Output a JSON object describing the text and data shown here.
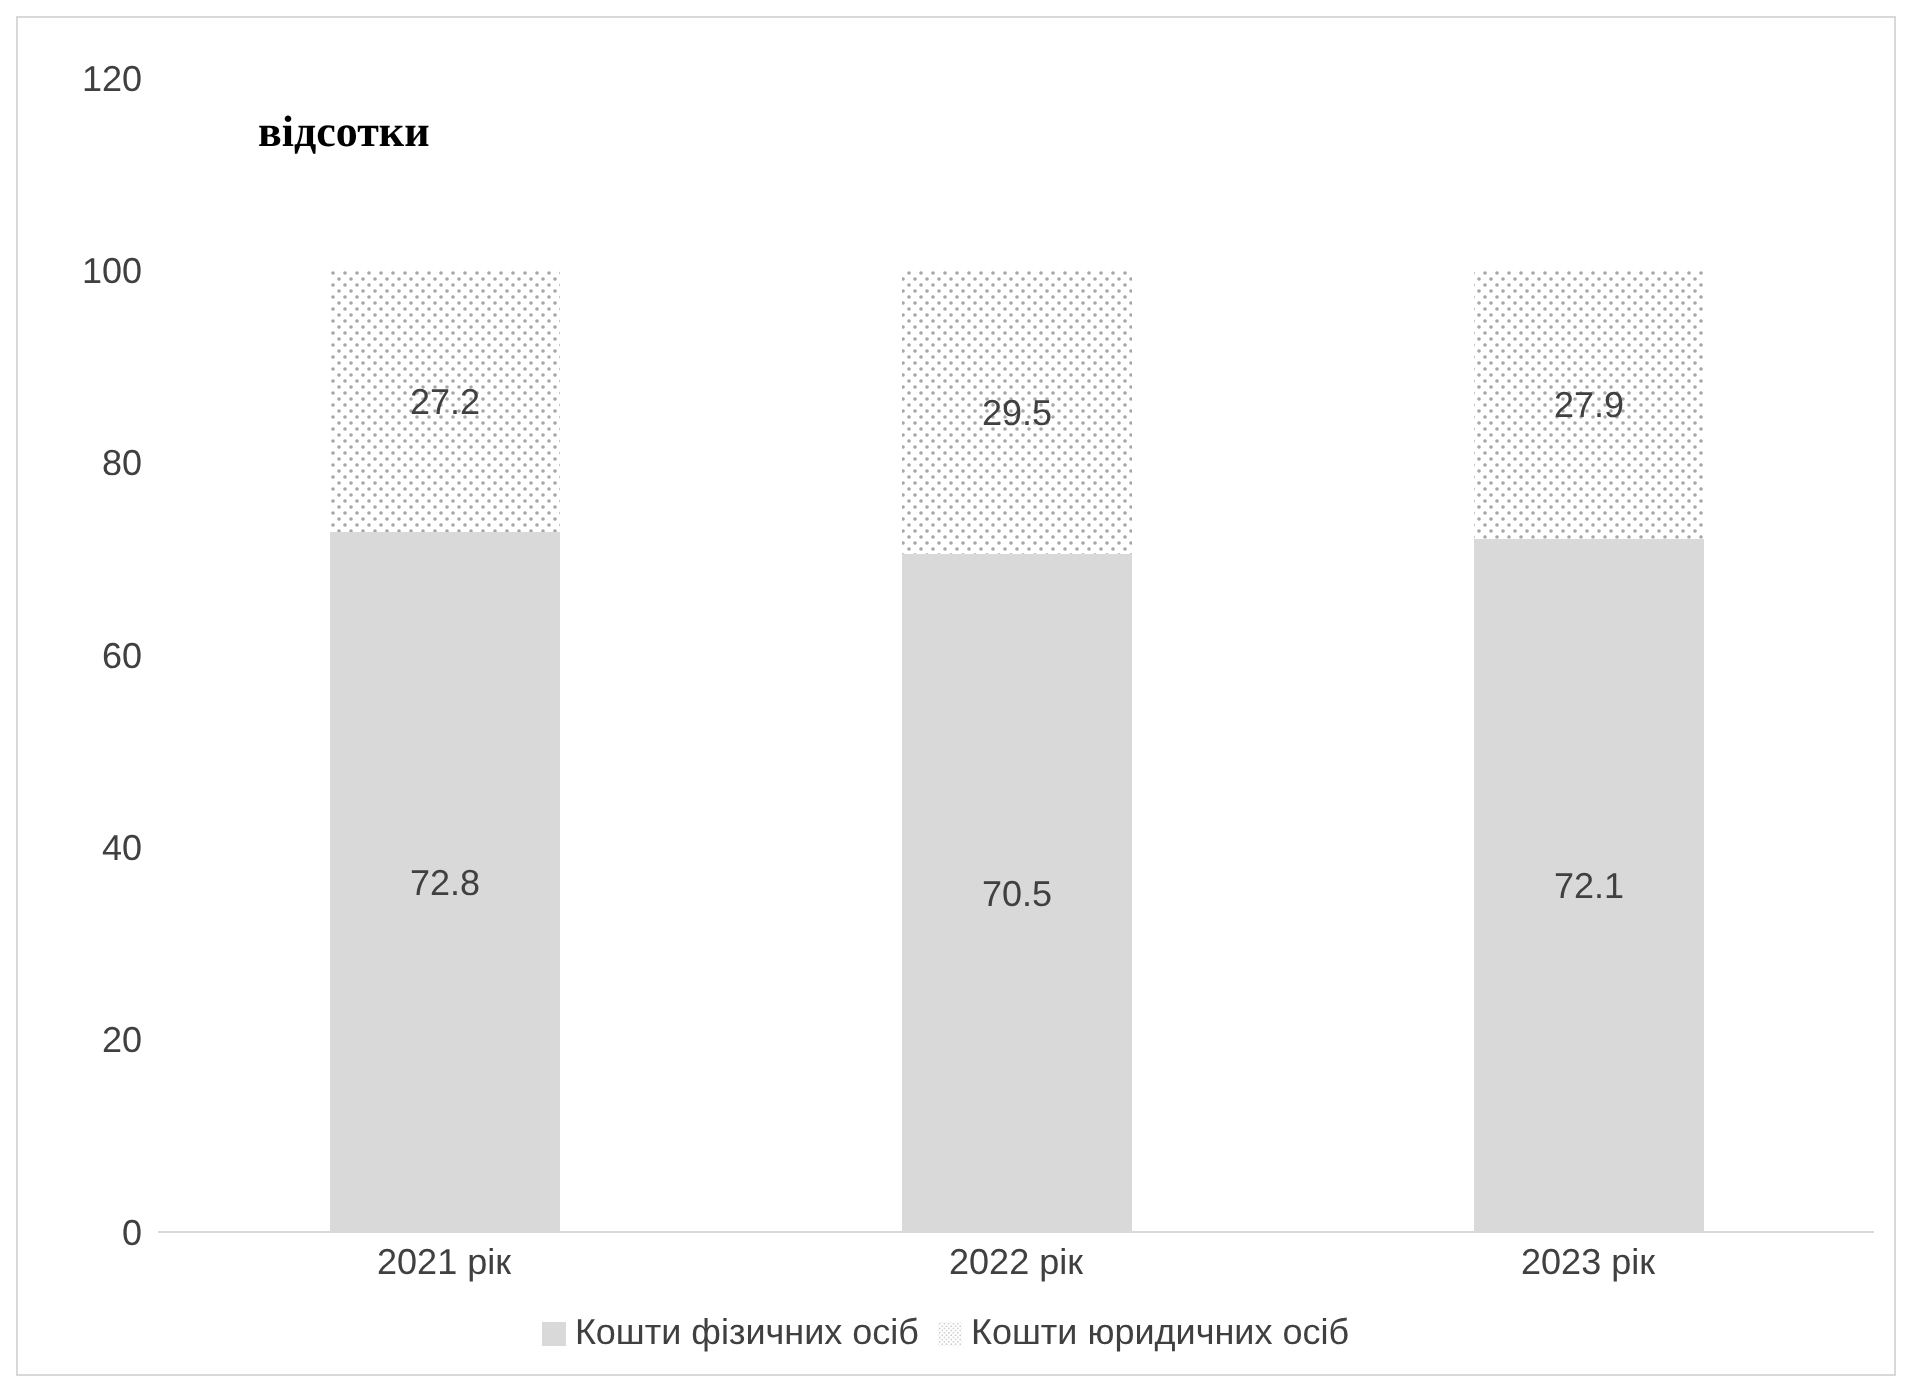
{
  "chart_data": {
    "type": "bar",
    "title": "відсотки",
    "categories": [
      "2021 рік",
      "2022 рік",
      "2023 рік"
    ],
    "series": [
      {
        "name": "Кошти фізичних осіб",
        "color": "#d9d9d9",
        "values": [
          72.8,
          70.5,
          72.1
        ]
      },
      {
        "name": "Кошти юридичних осіб",
        "color": "#a6a6a6",
        "values": [
          27.2,
          29.5,
          27.9
        ]
      }
    ],
    "stacked": true,
    "ylim": [
      0,
      120
    ],
    "yticks": [
      0,
      20,
      40,
      60,
      80,
      100,
      120
    ],
    "grid": false,
    "legend": "bottom",
    "data_labels": true
  }
}
